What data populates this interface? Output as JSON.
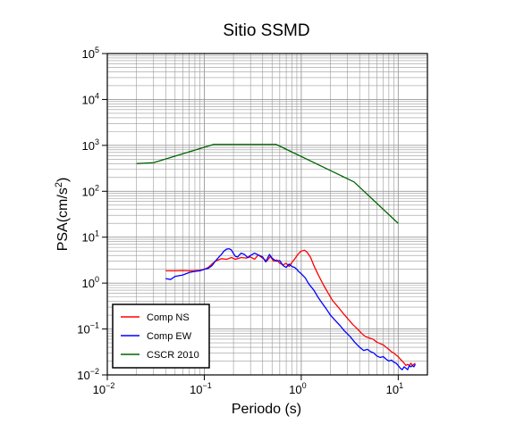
{
  "chart_data": {
    "type": "line",
    "title": "Sitio SSMD",
    "xlabel": "Periodo (s)",
    "ylabel_parts": [
      "PSA(cm/s",
      "2",
      ")"
    ],
    "xscale": "log",
    "yscale": "log",
    "xlim": [
      0.01,
      20
    ],
    "ylim": [
      0.01,
      100000
    ],
    "grid": true,
    "legend_position": "bottom-left",
    "x_ticks": [
      {
        "base": "10",
        "exp": "−2"
      },
      {
        "base": "10",
        "exp": "−1"
      },
      {
        "base": "10",
        "exp": "0"
      },
      {
        "base": "10",
        "exp": "1"
      }
    ],
    "y_ticks": [
      {
        "base": "10",
        "exp": "−2"
      },
      {
        "base": "10",
        "exp": "−1"
      },
      {
        "base": "10",
        "exp": "0"
      },
      {
        "base": "10",
        "exp": "1"
      },
      {
        "base": "10",
        "exp": "2"
      },
      {
        "base": "10",
        "exp": "3"
      },
      {
        "base": "10",
        "exp": "4"
      },
      {
        "base": "10",
        "exp": "5"
      }
    ],
    "series": [
      {
        "name": "Comp NS",
        "color": "#ff0000",
        "points": [
          [
            0.04,
            1.85
          ],
          [
            0.05,
            1.85
          ],
          [
            0.06,
            1.87
          ],
          [
            0.07,
            1.85
          ],
          [
            0.08,
            1.87
          ],
          [
            0.09,
            1.9
          ],
          [
            0.1,
            2.0
          ],
          [
            0.11,
            2.2
          ],
          [
            0.12,
            2.6
          ],
          [
            0.13,
            3.0
          ],
          [
            0.15,
            3.4
          ],
          [
            0.17,
            3.3
          ],
          [
            0.19,
            3.6
          ],
          [
            0.21,
            3.3
          ],
          [
            0.24,
            3.6
          ],
          [
            0.27,
            3.5
          ],
          [
            0.3,
            3.7
          ],
          [
            0.33,
            3.3
          ],
          [
            0.36,
            4.1
          ],
          [
            0.4,
            3.5
          ],
          [
            0.44,
            3.0
          ],
          [
            0.48,
            3.8
          ],
          [
            0.52,
            3.0
          ],
          [
            0.56,
            3.2
          ],
          [
            0.6,
            2.7
          ],
          [
            0.65,
            2.5
          ],
          [
            0.7,
            2.7
          ],
          [
            0.75,
            2.3
          ],
          [
            0.8,
            2.8
          ],
          [
            0.86,
            3.4
          ],
          [
            0.92,
            4.2
          ],
          [
            1.0,
            5.0
          ],
          [
            1.08,
            5.2
          ],
          [
            1.15,
            4.7
          ],
          [
            1.25,
            3.6
          ],
          [
            1.35,
            2.4
          ],
          [
            1.5,
            1.5
          ],
          [
            1.7,
            0.9
          ],
          [
            1.9,
            0.6
          ],
          [
            2.1,
            0.42
          ],
          [
            2.4,
            0.3
          ],
          [
            2.7,
            0.22
          ],
          [
            3.0,
            0.17
          ],
          [
            3.4,
            0.125
          ],
          [
            3.8,
            0.1
          ],
          [
            4.2,
            0.08
          ],
          [
            4.6,
            0.068
          ],
          [
            5.0,
            0.064
          ],
          [
            5.5,
            0.06
          ],
          [
            6.0,
            0.052
          ],
          [
            6.5,
            0.048
          ],
          [
            7.0,
            0.045
          ],
          [
            7.5,
            0.04
          ],
          [
            8.0,
            0.036
          ],
          [
            8.5,
            0.032
          ],
          [
            9.0,
            0.03
          ],
          [
            9.5,
            0.027
          ],
          [
            10.0,
            0.025
          ],
          [
            10.5,
            0.022
          ],
          [
            11.0,
            0.02
          ],
          [
            11.5,
            0.018
          ],
          [
            12.0,
            0.016
          ],
          [
            12.5,
            0.017
          ],
          [
            13.0,
            0.016
          ],
          [
            13.5,
            0.018
          ],
          [
            14.0,
            0.016
          ],
          [
            14.5,
            0.017
          ],
          [
            15.0,
            0.018
          ]
        ]
      },
      {
        "name": "Comp EW",
        "color": "#0000ff",
        "points": [
          [
            0.04,
            1.25
          ],
          [
            0.045,
            1.2
          ],
          [
            0.05,
            1.4
          ],
          [
            0.06,
            1.5
          ],
          [
            0.07,
            1.7
          ],
          [
            0.08,
            1.8
          ],
          [
            0.09,
            1.85
          ],
          [
            0.1,
            2.0
          ],
          [
            0.11,
            2.1
          ],
          [
            0.12,
            2.4
          ],
          [
            0.13,
            3.0
          ],
          [
            0.14,
            3.6
          ],
          [
            0.15,
            4.2
          ],
          [
            0.16,
            5.0
          ],
          [
            0.17,
            5.5
          ],
          [
            0.18,
            5.6
          ],
          [
            0.19,
            5.3
          ],
          [
            0.2,
            4.4
          ],
          [
            0.21,
            3.8
          ],
          [
            0.22,
            3.7
          ],
          [
            0.24,
            4.5
          ],
          [
            0.26,
            4.2
          ],
          [
            0.28,
            3.6
          ],
          [
            0.3,
            4.0
          ],
          [
            0.33,
            4.5
          ],
          [
            0.36,
            4.1
          ],
          [
            0.4,
            3.7
          ],
          [
            0.43,
            2.9
          ],
          [
            0.47,
            4.2
          ],
          [
            0.5,
            3.5
          ],
          [
            0.55,
            3.0
          ],
          [
            0.6,
            3.1
          ],
          [
            0.65,
            2.4
          ],
          [
            0.7,
            2.2
          ],
          [
            0.75,
            2.6
          ],
          [
            0.8,
            2.3
          ],
          [
            0.85,
            2.2
          ],
          [
            0.9,
            2.0
          ],
          [
            0.95,
            1.75
          ],
          [
            1.0,
            1.6
          ],
          [
            1.1,
            1.3
          ],
          [
            1.2,
            0.95
          ],
          [
            1.35,
            0.7
          ],
          [
            1.5,
            0.48
          ],
          [
            1.65,
            0.36
          ],
          [
            1.8,
            0.28
          ],
          [
            2.0,
            0.2
          ],
          [
            2.2,
            0.16
          ],
          [
            2.5,
            0.12
          ],
          [
            2.8,
            0.09
          ],
          [
            3.2,
            0.068
          ],
          [
            3.6,
            0.05
          ],
          [
            4.0,
            0.04
          ],
          [
            4.4,
            0.034
          ],
          [
            4.8,
            0.036
          ],
          [
            5.2,
            0.032
          ],
          [
            5.6,
            0.03
          ],
          [
            6.0,
            0.026
          ],
          [
            6.5,
            0.024
          ],
          [
            7.0,
            0.025
          ],
          [
            7.5,
            0.022
          ],
          [
            8.0,
            0.02
          ],
          [
            8.5,
            0.021
          ],
          [
            9.0,
            0.019
          ],
          [
            9.5,
            0.018
          ],
          [
            10.0,
            0.016
          ],
          [
            10.5,
            0.014
          ],
          [
            11.0,
            0.013
          ],
          [
            11.5,
            0.015
          ],
          [
            12.0,
            0.014
          ],
          [
            12.5,
            0.013
          ],
          [
            13.0,
            0.016
          ],
          [
            13.5,
            0.015
          ],
          [
            14.0,
            0.016
          ],
          [
            14.5,
            0.015
          ],
          [
            15.0,
            0.017
          ]
        ]
      },
      {
        "name": "CSCR 2010",
        "color": "#006400",
        "points": [
          [
            0.02,
            400
          ],
          [
            0.03,
            420
          ],
          [
            0.125,
            1050
          ],
          [
            0.55,
            1050
          ],
          [
            3.5,
            160
          ],
          [
            10.0,
            20
          ]
        ]
      }
    ]
  }
}
